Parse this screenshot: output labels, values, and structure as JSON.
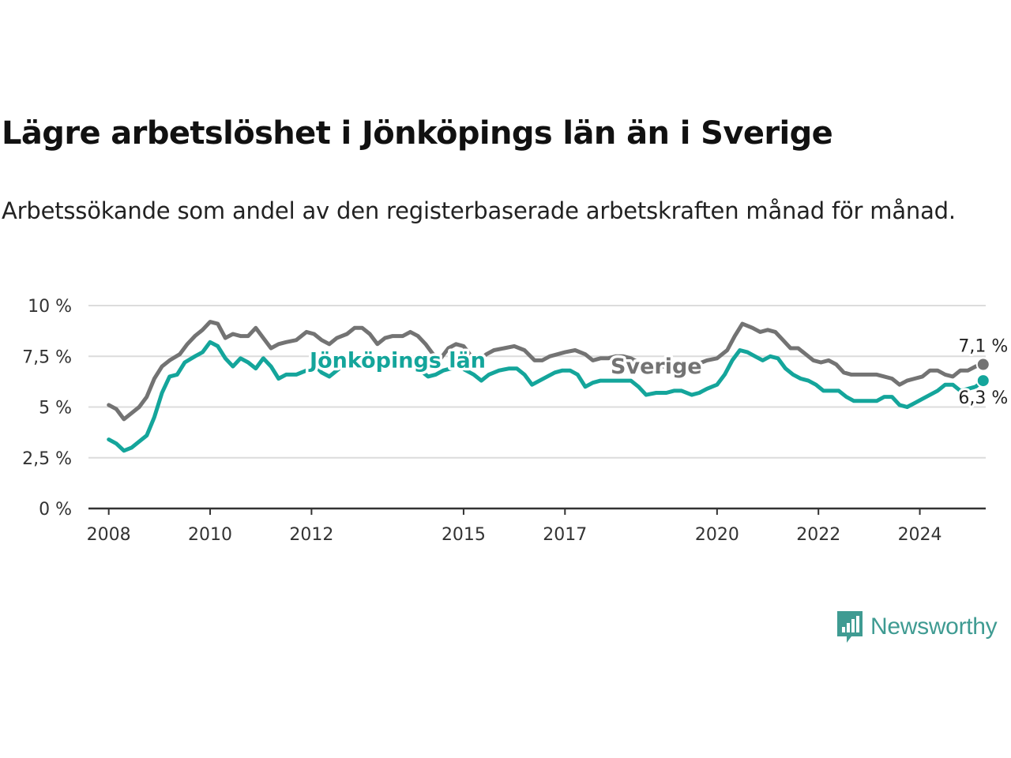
{
  "header": {
    "title": "Lägre arbetslöshet i Jönköpings län än i Sverige",
    "subtitle": "Arbetssökande som andel av den registerbaserade arbetskraften månad för månad."
  },
  "brand": {
    "name": "Newsworthy",
    "icon": "newsworthy-logo-icon",
    "color": "#3f9b92"
  },
  "chart_data": {
    "type": "line",
    "title": "Lägre arbetslöshet i Jönköpings län än i Sverige",
    "subtitle": "Arbetssökande som andel av den registerbaserade arbetskraften månad för månad.",
    "xlabel": "",
    "ylabel": "",
    "xlim": [
      2007.6,
      2025.3
    ],
    "ylim": [
      0,
      10
    ],
    "y_ticks": [
      0,
      2.5,
      5,
      7.5,
      10
    ],
    "y_tick_labels": [
      "0 %",
      "2,5 %",
      "5 %",
      "7,5 %",
      "10 %"
    ],
    "x_ticks": [
      2008,
      2010,
      2012,
      2015,
      2017,
      2020,
      2022,
      2024
    ],
    "x_tick_labels": [
      "2008",
      "2010",
      "2012",
      "2015",
      "2017",
      "2020",
      "2022",
      "2024"
    ],
    "grid": true,
    "legend": "direct labels on lines",
    "series": [
      {
        "name": "Sverige",
        "color": "#737373",
        "label_at": [
          2018.8,
          7.0
        ],
        "end_label": "7,1 %",
        "points": [
          [
            2008.0,
            5.1
          ],
          [
            2008.15,
            4.9
          ],
          [
            2008.3,
            4.4
          ],
          [
            2008.45,
            4.7
          ],
          [
            2008.6,
            5.0
          ],
          [
            2008.75,
            5.5
          ],
          [
            2008.9,
            6.4
          ],
          [
            2009.05,
            7.0
          ],
          [
            2009.2,
            7.3
          ],
          [
            2009.4,
            7.6
          ],
          [
            2009.55,
            8.1
          ],
          [
            2009.7,
            8.5
          ],
          [
            2009.85,
            8.8
          ],
          [
            2010.0,
            9.2
          ],
          [
            2010.15,
            9.1
          ],
          [
            2010.3,
            8.4
          ],
          [
            2010.45,
            8.6
          ],
          [
            2010.6,
            8.5
          ],
          [
            2010.75,
            8.5
          ],
          [
            2010.9,
            8.9
          ],
          [
            2011.05,
            8.4
          ],
          [
            2011.2,
            7.9
          ],
          [
            2011.35,
            8.1
          ],
          [
            2011.5,
            8.2
          ],
          [
            2011.7,
            8.3
          ],
          [
            2011.9,
            8.7
          ],
          [
            2012.05,
            8.6
          ],
          [
            2012.2,
            8.3
          ],
          [
            2012.35,
            8.1
          ],
          [
            2012.5,
            8.4
          ],
          [
            2012.7,
            8.6
          ],
          [
            2012.85,
            8.9
          ],
          [
            2013.0,
            8.9
          ],
          [
            2013.15,
            8.6
          ],
          [
            2013.3,
            8.1
          ],
          [
            2013.45,
            8.4
          ],
          [
            2013.6,
            8.5
          ],
          [
            2013.8,
            8.5
          ],
          [
            2013.95,
            8.7
          ],
          [
            2014.1,
            8.5
          ],
          [
            2014.25,
            8.1
          ],
          [
            2014.4,
            7.6
          ],
          [
            2014.55,
            7.4
          ],
          [
            2014.7,
            7.9
          ],
          [
            2014.85,
            8.1
          ],
          [
            2015.0,
            8.0
          ],
          [
            2015.15,
            7.5
          ],
          [
            2015.3,
            7.3
          ],
          [
            2015.45,
            7.6
          ],
          [
            2015.6,
            7.8
          ],
          [
            2015.8,
            7.9
          ],
          [
            2016.0,
            8.0
          ],
          [
            2016.2,
            7.8
          ],
          [
            2016.4,
            7.3
          ],
          [
            2016.55,
            7.3
          ],
          [
            2016.7,
            7.5
          ],
          [
            2016.85,
            7.6
          ],
          [
            2017.0,
            7.7
          ],
          [
            2017.2,
            7.8
          ],
          [
            2017.4,
            7.6
          ],
          [
            2017.55,
            7.3
          ],
          [
            2017.7,
            7.4
          ],
          [
            2017.85,
            7.4
          ],
          [
            2018.0,
            7.5
          ],
          [
            2018.15,
            7.5
          ],
          [
            2018.3,
            7.4
          ],
          [
            2018.45,
            7.2
          ],
          [
            2018.6,
            6.9
          ],
          [
            2018.8,
            7.0
          ],
          [
            2019.0,
            7.0
          ],
          [
            2019.2,
            7.1
          ],
          [
            2019.4,
            6.9
          ],
          [
            2019.6,
            7.1
          ],
          [
            2019.8,
            7.3
          ],
          [
            2020.0,
            7.4
          ],
          [
            2020.2,
            7.8
          ],
          [
            2020.35,
            8.5
          ],
          [
            2020.5,
            9.1
          ],
          [
            2020.7,
            8.9
          ],
          [
            2020.85,
            8.7
          ],
          [
            2021.0,
            8.8
          ],
          [
            2021.15,
            8.7
          ],
          [
            2021.3,
            8.3
          ],
          [
            2021.45,
            7.9
          ],
          [
            2021.6,
            7.9
          ],
          [
            2021.75,
            7.6
          ],
          [
            2021.9,
            7.3
          ],
          [
            2022.05,
            7.2
          ],
          [
            2022.2,
            7.3
          ],
          [
            2022.35,
            7.1
          ],
          [
            2022.5,
            6.7
          ],
          [
            2022.65,
            6.6
          ],
          [
            2022.8,
            6.6
          ],
          [
            2023.0,
            6.6
          ],
          [
            2023.15,
            6.6
          ],
          [
            2023.3,
            6.5
          ],
          [
            2023.45,
            6.4
          ],
          [
            2023.6,
            6.1
          ],
          [
            2023.75,
            6.3
          ],
          [
            2023.9,
            6.4
          ],
          [
            2024.05,
            6.5
          ],
          [
            2024.2,
            6.8
          ],
          [
            2024.35,
            6.8
          ],
          [
            2024.5,
            6.6
          ],
          [
            2024.65,
            6.5
          ],
          [
            2024.8,
            6.8
          ],
          [
            2024.95,
            6.8
          ],
          [
            2025.1,
            7.0
          ],
          [
            2025.25,
            7.1
          ]
        ]
      },
      {
        "name": "Jönköpings län",
        "color": "#14a59b",
        "label_at": [
          2013.7,
          7.3
        ],
        "end_label": "6,3 %",
        "points": [
          [
            2008.0,
            3.4
          ],
          [
            2008.15,
            3.2
          ],
          [
            2008.3,
            2.85
          ],
          [
            2008.45,
            3.0
          ],
          [
            2008.6,
            3.3
          ],
          [
            2008.75,
            3.6
          ],
          [
            2008.9,
            4.5
          ],
          [
            2009.05,
            5.7
          ],
          [
            2009.2,
            6.5
          ],
          [
            2009.35,
            6.6
          ],
          [
            2009.5,
            7.2
          ],
          [
            2009.7,
            7.5
          ],
          [
            2009.85,
            7.7
          ],
          [
            2010.0,
            8.2
          ],
          [
            2010.15,
            8.0
          ],
          [
            2010.3,
            7.4
          ],
          [
            2010.45,
            7.0
          ],
          [
            2010.6,
            7.4
          ],
          [
            2010.75,
            7.2
          ],
          [
            2010.9,
            6.9
          ],
          [
            2011.05,
            7.4
          ],
          [
            2011.2,
            7.0
          ],
          [
            2011.35,
            6.4
          ],
          [
            2011.5,
            6.6
          ],
          [
            2011.7,
            6.6
          ],
          [
            2011.9,
            6.8
          ],
          [
            2012.05,
            7.1
          ],
          [
            2012.2,
            6.7
          ],
          [
            2012.35,
            6.5
          ],
          [
            2012.5,
            6.8
          ],
          [
            2012.65,
            7.1
          ],
          [
            2012.8,
            7.3
          ],
          [
            2013.0,
            7.3
          ],
          [
            2013.2,
            7.1
          ],
          [
            2013.4,
            7.0
          ],
          [
            2013.6,
            7.1
          ],
          [
            2013.8,
            7.2
          ],
          [
            2014.0,
            7.0
          ],
          [
            2014.15,
            6.8
          ],
          [
            2014.3,
            6.5
          ],
          [
            2014.45,
            6.6
          ],
          [
            2014.6,
            6.8
          ],
          [
            2014.75,
            6.9
          ],
          [
            2014.9,
            7.0
          ],
          [
            2015.05,
            6.8
          ],
          [
            2015.2,
            6.6
          ],
          [
            2015.35,
            6.3
          ],
          [
            2015.5,
            6.6
          ],
          [
            2015.7,
            6.8
          ],
          [
            2015.9,
            6.9
          ],
          [
            2016.05,
            6.9
          ],
          [
            2016.2,
            6.6
          ],
          [
            2016.35,
            6.1
          ],
          [
            2016.5,
            6.3
          ],
          [
            2016.65,
            6.5
          ],
          [
            2016.8,
            6.7
          ],
          [
            2016.95,
            6.8
          ],
          [
            2017.1,
            6.8
          ],
          [
            2017.25,
            6.6
          ],
          [
            2017.4,
            6.0
          ],
          [
            2017.55,
            6.2
          ],
          [
            2017.7,
            6.3
          ],
          [
            2017.85,
            6.3
          ],
          [
            2018.0,
            6.3
          ],
          [
            2018.15,
            6.3
          ],
          [
            2018.3,
            6.3
          ],
          [
            2018.45,
            6.0
          ],
          [
            2018.6,
            5.6
          ],
          [
            2018.8,
            5.7
          ],
          [
            2019.0,
            5.7
          ],
          [
            2019.15,
            5.8
          ],
          [
            2019.3,
            5.8
          ],
          [
            2019.5,
            5.6
          ],
          [
            2019.65,
            5.7
          ],
          [
            2019.8,
            5.9
          ],
          [
            2020.0,
            6.1
          ],
          [
            2020.15,
            6.6
          ],
          [
            2020.3,
            7.3
          ],
          [
            2020.45,
            7.8
          ],
          [
            2020.6,
            7.7
          ],
          [
            2020.75,
            7.5
          ],
          [
            2020.9,
            7.3
          ],
          [
            2021.05,
            7.5
          ],
          [
            2021.2,
            7.4
          ],
          [
            2021.35,
            6.9
          ],
          [
            2021.5,
            6.6
          ],
          [
            2021.65,
            6.4
          ],
          [
            2021.8,
            6.3
          ],
          [
            2021.95,
            6.1
          ],
          [
            2022.1,
            5.8
          ],
          [
            2022.25,
            5.8
          ],
          [
            2022.4,
            5.8
          ],
          [
            2022.55,
            5.5
          ],
          [
            2022.7,
            5.3
          ],
          [
            2022.85,
            5.3
          ],
          [
            2023.0,
            5.3
          ],
          [
            2023.15,
            5.3
          ],
          [
            2023.3,
            5.5
          ],
          [
            2023.45,
            5.5
          ],
          [
            2023.6,
            5.1
          ],
          [
            2023.75,
            5.0
          ],
          [
            2023.9,
            5.2
          ],
          [
            2024.05,
            5.4
          ],
          [
            2024.2,
            5.6
          ],
          [
            2024.35,
            5.8
          ],
          [
            2024.5,
            6.1
          ],
          [
            2024.65,
            6.1
          ],
          [
            2024.8,
            5.8
          ],
          [
            2024.95,
            5.9
          ],
          [
            2025.1,
            6.0
          ],
          [
            2025.25,
            6.3
          ]
        ]
      }
    ]
  }
}
